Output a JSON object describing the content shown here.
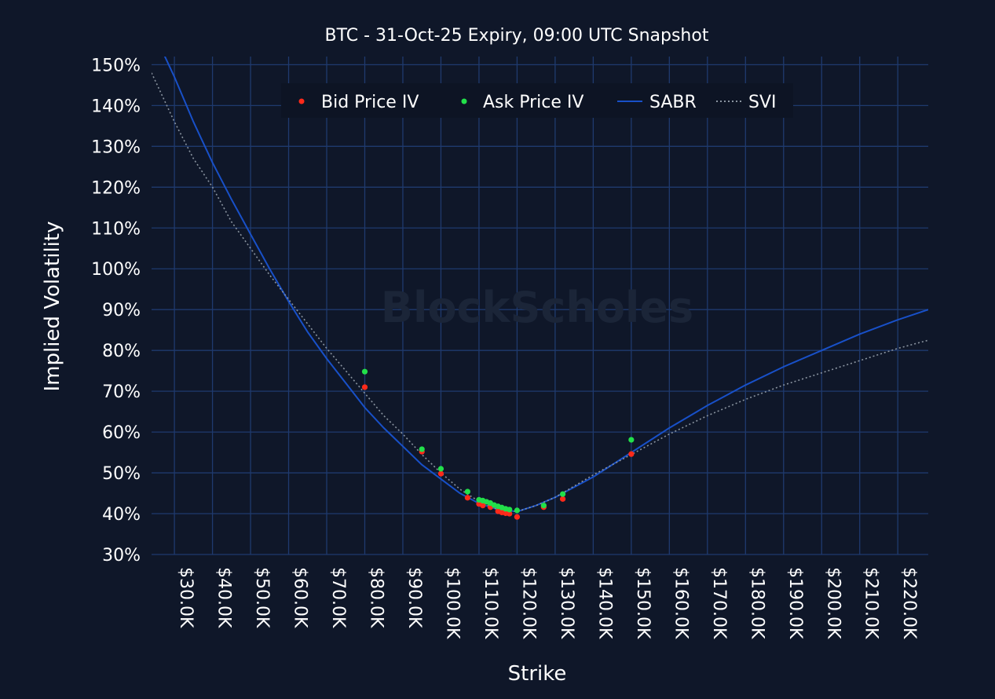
{
  "chart_data": {
    "type": "scatter",
    "title": "BTC - 31-Oct-25 Expiry, 09:00 UTC Snapshot",
    "xlabel": "Strike",
    "ylabel": "Implied Volatility",
    "watermark": "BlockScholes",
    "xlim": [
      24000,
      228000
    ],
    "ylim": [
      30,
      152
    ],
    "x_ticks": [
      30000,
      40000,
      50000,
      60000,
      70000,
      80000,
      90000,
      100000,
      110000,
      120000,
      130000,
      140000,
      150000,
      160000,
      170000,
      180000,
      190000,
      200000,
      210000,
      220000
    ],
    "x_tick_labels": [
      "$30.0K",
      "$40.0K",
      "$50.0K",
      "$60.0K",
      "$70.0K",
      "$80.0K",
      "$90.0K",
      "$100.0K",
      "$110.0K",
      "$120.0K",
      "$130.0K",
      "$140.0K",
      "$150.0K",
      "$160.0K",
      "$170.0K",
      "$180.0K",
      "$190.0K",
      "$200.0K",
      "$210.0K",
      "$220.0K"
    ],
    "y_ticks": [
      30,
      40,
      50,
      60,
      70,
      80,
      90,
      100,
      110,
      120,
      130,
      140,
      150
    ],
    "y_tick_labels": [
      "30%",
      "40%",
      "50%",
      "60%",
      "70%",
      "80%",
      "90%",
      "100%",
      "110%",
      "120%",
      "130%",
      "140%",
      "150%"
    ],
    "legend": {
      "placement": "top-center",
      "entries": [
        "Bid Price IV",
        "Ask Price IV",
        "SABR",
        "SVI"
      ]
    },
    "series": [
      {
        "name": "Bid Price IV",
        "kind": "scatter",
        "color": "#ff2a1a",
        "x": [
          80000,
          95000,
          100000,
          107000,
          110000,
          111000,
          113000,
          115000,
          116000,
          117000,
          118000,
          120000,
          127000,
          132000,
          150000
        ],
        "y": [
          71.0,
          55.2,
          49.8,
          43.9,
          42.4,
          42.0,
          41.6,
          40.6,
          40.3,
          40.1,
          40.0,
          39.2,
          41.6,
          43.6,
          54.6
        ]
      },
      {
        "name": "Ask Price IV",
        "kind": "scatter",
        "color": "#22e04a",
        "x": [
          80000,
          95000,
          100000,
          107000,
          110000,
          111000,
          112000,
          113000,
          114000,
          115000,
          116000,
          117000,
          118000,
          120000,
          127000,
          132000,
          150000
        ],
        "y": [
          74.8,
          55.8,
          51.0,
          45.4,
          43.4,
          43.2,
          42.9,
          42.6,
          42.1,
          41.8,
          41.5,
          41.2,
          41.0,
          40.8,
          42.0,
          44.8,
          58.1
        ]
      },
      {
        "name": "SABR",
        "kind": "line",
        "color": "#1850c8",
        "x": [
          26000,
          30000,
          35000,
          40000,
          45000,
          50000,
          55000,
          60000,
          65000,
          70000,
          75000,
          80000,
          85000,
          90000,
          95000,
          100000,
          105000,
          110000,
          115000,
          120000,
          125000,
          130000,
          140000,
          150000,
          160000,
          170000,
          180000,
          190000,
          200000,
          210000,
          220000,
          228000
        ],
        "y": [
          155,
          147,
          136,
          126,
          117,
          108.5,
          100,
          92,
          84.5,
          78,
          72,
          66,
          61,
          56.5,
          52,
          48.5,
          45,
          42.5,
          41,
          40.5,
          42,
          44,
          49,
          55,
          61,
          66.5,
          71.5,
          76,
          80,
          84,
          87.5,
          90
        ]
      },
      {
        "name": "SVI",
        "kind": "line",
        "dashed": true,
        "color": "#8a94a0",
        "x": [
          24000,
          30000,
          35000,
          40000,
          45000,
          50000,
          55000,
          60000,
          65000,
          70000,
          75000,
          80000,
          85000,
          90000,
          95000,
          100000,
          105000,
          110000,
          115000,
          120000,
          125000,
          130000,
          140000,
          150000,
          160000,
          170000,
          180000,
          190000,
          200000,
          210000,
          220000,
          228000
        ],
        "y": [
          148,
          136,
          127,
          120,
          111.5,
          105,
          98.5,
          92.5,
          86.5,
          80.5,
          75,
          69.5,
          64,
          59.5,
          54.5,
          50,
          46,
          43,
          41,
          40.5,
          42,
          44,
          49.5,
          54.5,
          59.5,
          64,
          68,
          71.5,
          74.5,
          77.5,
          80.5,
          82.5
        ]
      }
    ]
  }
}
